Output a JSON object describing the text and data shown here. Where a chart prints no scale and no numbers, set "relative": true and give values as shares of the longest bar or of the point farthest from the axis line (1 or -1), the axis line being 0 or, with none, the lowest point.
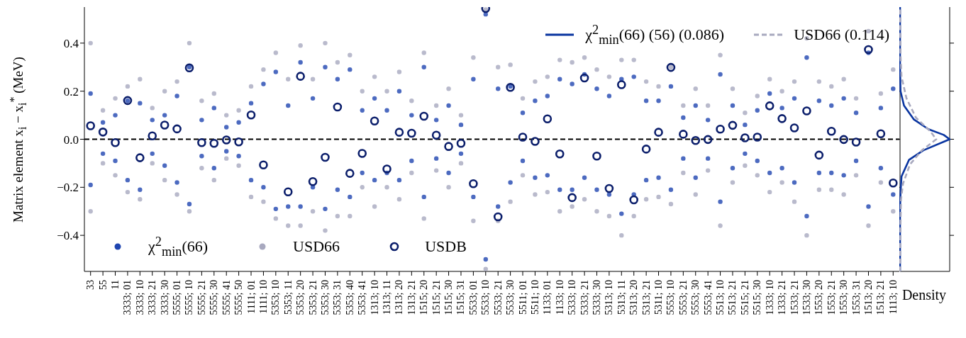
{
  "chart_data": [
    {
      "type": "scatter",
      "ylabel": "Matrix element x$_{i}$ − x$_{i}$$^{*}$ (MeV)",
      "marker": "circle",
      "legend": "bottom",
      "categories": [
        "33",
        "55",
        "11",
        "3333; 01",
        "3333; 10",
        "3333; 21",
        "3333; 30",
        "5555; 01",
        "5555; 10",
        "5555; 21",
        "5555; 30",
        "5555; 41",
        "5555; 50",
        "1111; 01",
        "1111; 10",
        "5353; 10",
        "5353; 11",
        "5353; 20",
        "5353; 21",
        "5353; 30",
        "5353; 31",
        "5353; 40",
        "5353; 41",
        "1313; 10",
        "1313; 11",
        "1313; 20",
        "1313; 21",
        "1515; 20",
        "1515; 21",
        "1515; 30",
        "1515; 31",
        "5533; 01",
        "5533; 10",
        "5533; 21",
        "5533; 30",
        "5511; 01",
        "5511; 10",
        "1133; 01",
        "1133; 10",
        "5333; 10",
        "5333; 21",
        "5333; 30",
        "5313; 10",
        "5313; 11",
        "5313; 20",
        "5313; 21",
        "5311; 10",
        "5553; 10",
        "5553; 21",
        "5553; 30",
        "5553; 41",
        "5513; 10",
        "5513; 21",
        "5515; 21",
        "5515; 30",
        "1333; 10",
        "1333; 21",
        "1533; 21",
        "1533; 30",
        "1553; 20",
        "1553; 21",
        "1553; 30",
        "1553; 31",
        "1513; 20",
        "1513; 21",
        "1113; 10"
      ],
      "ylim": [
        -0.55,
        0.55
      ],
      "yticks": [
        {
          "value": -0.4,
          "label": "−0.4"
        },
        {
          "value": -0.2,
          "label": "−0.2"
        },
        {
          "value": 0,
          "label": "0.0"
        },
        {
          "value": 0.2,
          "label": "0.2"
        },
        {
          "value": 0.4,
          "label": "0.4"
        }
      ],
      "ref_lines": [
        {
          "axis": "y",
          "value": 0,
          "color": "#000000",
          "line_style": "dashed"
        }
      ],
      "series": [
        {
          "name": "χ$^{2}$$_{min}$(66)",
          "color": "#1f45b0",
          "x": [
            "33",
            "33",
            "55",
            "55",
            "11",
            "11",
            "3333; 01",
            "3333; 01",
            "3333; 10",
            "3333; 10",
            "3333; 21",
            "3333; 21",
            "3333; 30",
            "3333; 30",
            "5555; 01",
            "5555; 01",
            "5555; 10",
            "5555; 10",
            "5555; 21",
            "5555; 21",
            "5555; 30",
            "5555; 30",
            "5555; 41",
            "5555; 41",
            "5555; 50",
            "5555; 50",
            "1111; 01",
            "1111; 01",
            "1111; 10",
            "1111; 10",
            "5353; 10",
            "5353; 10",
            "5353; 11",
            "5353; 11",
            "5353; 20",
            "5353; 20",
            "5353; 21",
            "5353; 21",
            "5353; 30",
            "5353; 30",
            "5353; 31",
            "5353; 31",
            "5353; 40",
            "5353; 40",
            "5353; 41",
            "5353; 41",
            "1313; 10",
            "1313; 10",
            "1313; 11",
            "1313; 11",
            "1313; 20",
            "1313; 20",
            "1313; 21",
            "1313; 21",
            "1515; 20",
            "1515; 20",
            "1515; 21",
            "1515; 21",
            "1515; 30",
            "1515; 30",
            "1515; 31",
            "1515; 31",
            "5533; 01",
            "5533; 01",
            "5533; 10",
            "5533; 10",
            "5533; 21",
            "5533; 21",
            "5533; 30",
            "5533; 30",
            "5511; 01",
            "5511; 01",
            "5511; 10",
            "5511; 10",
            "1133; 01",
            "1133; 01",
            "1133; 10",
            "1133; 10",
            "5333; 10",
            "5333; 10",
            "5333; 21",
            "5333; 21",
            "5333; 30",
            "5333; 30",
            "5313; 10",
            "5313; 10",
            "5313; 11",
            "5313; 11",
            "5313; 20",
            "5313; 20",
            "5313; 21",
            "5313; 21",
            "5311; 10",
            "5311; 10",
            "5553; 10",
            "5553; 10",
            "5553; 21",
            "5553; 21",
            "5553; 30",
            "5553; 30",
            "5553; 41",
            "5553; 41",
            "5513; 10",
            "5513; 10",
            "5513; 21",
            "5513; 21",
            "5515; 21",
            "5515; 21",
            "5515; 30",
            "5515; 30",
            "1333; 10",
            "1333; 10",
            "1333; 21",
            "1333; 21",
            "1533; 21",
            "1533; 21",
            "1533; 30",
            "1533; 30",
            "1553; 20",
            "1553; 20",
            "1553; 21",
            "1553; 21",
            "1553; 30",
            "1553; 30",
            "1553; 31",
            "1553; 31",
            "1513; 20",
            "1513; 20",
            "1513; 21",
            "1513; 21",
            "1113; 10",
            "1113; 10"
          ],
          "values": [
            0.19,
            -0.19,
            0.07,
            -0.06,
            0.1,
            -0.09,
            0.16,
            -0.17,
            0.15,
            -0.21,
            0.08,
            -0.06,
            0.1,
            -0.11,
            0.18,
            -0.18,
            0.3,
            -0.27,
            0.08,
            -0.07,
            0.13,
            -0.12,
            0.05,
            -0.05,
            0.07,
            -0.07,
            0.15,
            -0.17,
            0.23,
            -0.2,
            0.28,
            -0.29,
            0.14,
            -0.28,
            0.32,
            -0.28,
            0.17,
            -0.2,
            0.3,
            -0.29,
            0.25,
            -0.21,
            0.29,
            -0.24,
            0.12,
            -0.14,
            0.17,
            -0.17,
            0.12,
            -0.14,
            0.2,
            -0.17,
            0.1,
            -0.09,
            0.3,
            -0.24,
            0.08,
            -0.08,
            0.14,
            -0.14,
            0.06,
            -0.06,
            0.25,
            -0.24,
            0.52,
            -0.5,
            0.21,
            -0.28,
            0.22,
            -0.18,
            0.11,
            -0.09,
            0.16,
            -0.16,
            0.18,
            -0.15,
            0.25,
            -0.21,
            0.23,
            -0.21,
            0.27,
            -0.16,
            0.21,
            -0.21,
            0.18,
            -0.23,
            0.25,
            -0.31,
            0.26,
            -0.23,
            0.16,
            -0.17,
            0.16,
            -0.16,
            0.22,
            -0.21,
            0.09,
            -0.08,
            0.14,
            -0.16,
            0.08,
            -0.08,
            0.27,
            -0.26,
            0.14,
            -0.12,
            0.06,
            -0.06,
            0.12,
            -0.09,
            0.19,
            -0.14,
            0.13,
            -0.12,
            0.17,
            -0.18,
            0.34,
            -0.32,
            0.16,
            -0.14,
            0.14,
            -0.14,
            0.17,
            -0.15,
            0.11,
            -0.09,
            0.36,
            -0.28,
            0.13,
            -0.12,
            0.21,
            -0.23
          ]
        },
        {
          "name": "USD66",
          "color": "#a8a9bf",
          "x": [
            "33",
            "33",
            "55",
            "55",
            "11",
            "11",
            "3333; 01",
            "3333; 01",
            "3333; 10",
            "3333; 10",
            "3333; 21",
            "3333; 21",
            "3333; 30",
            "3333; 30",
            "5555; 01",
            "5555; 01",
            "5555; 10",
            "5555; 10",
            "5555; 21",
            "5555; 21",
            "5555; 30",
            "5555; 30",
            "5555; 41",
            "5555; 41",
            "5555; 50",
            "5555; 50",
            "1111; 01",
            "1111; 01",
            "1111; 10",
            "1111; 10",
            "5353; 10",
            "5353; 10",
            "5353; 11",
            "5353; 11",
            "5353; 20",
            "5353; 20",
            "5353; 21",
            "5353; 21",
            "5353; 30",
            "5353; 30",
            "5353; 31",
            "5353; 31",
            "5353; 40",
            "5353; 40",
            "5353; 41",
            "5353; 41",
            "1313; 10",
            "1313; 10",
            "1313; 11",
            "1313; 11",
            "1313; 20",
            "1313; 20",
            "1313; 21",
            "1313; 21",
            "1515; 20",
            "1515; 20",
            "1515; 21",
            "1515; 21",
            "1515; 30",
            "1515; 30",
            "1515; 31",
            "1515; 31",
            "5533; 01",
            "5533; 01",
            "5533; 10",
            "5533; 10",
            "5533; 21",
            "5533; 21",
            "5533; 30",
            "5533; 30",
            "5511; 01",
            "5511; 01",
            "5511; 10",
            "5511; 10",
            "1133; 01",
            "1133; 01",
            "1133; 10",
            "1133; 10",
            "5333; 10",
            "5333; 10",
            "5333; 21",
            "5333; 21",
            "5333; 30",
            "5333; 30",
            "5313; 10",
            "5313; 10",
            "5313; 11",
            "5313; 11",
            "5313; 20",
            "5313; 20",
            "5313; 21",
            "5313; 21",
            "5311; 10",
            "5311; 10",
            "5553; 10",
            "5553; 10",
            "5553; 21",
            "5553; 21",
            "5553; 30",
            "5553; 30",
            "5553; 41",
            "5553; 41",
            "5513; 10",
            "5513; 10",
            "5513; 21",
            "5513; 21",
            "5515; 21",
            "5515; 21",
            "5515; 30",
            "5515; 30",
            "1333; 10",
            "1333; 10",
            "1333; 21",
            "1333; 21",
            "1533; 21",
            "1533; 21",
            "1533; 30",
            "1533; 30",
            "1553; 20",
            "1553; 20",
            "1553; 21",
            "1553; 21",
            "1553; 30",
            "1553; 30",
            "1553; 31",
            "1553; 31",
            "1513; 20",
            "1513; 20",
            "1513; 21",
            "1513; 21",
            "1113; 10",
            "1113; 10"
          ],
          "values": [
            0.4,
            -0.3,
            0.12,
            -0.1,
            0.17,
            -0.15,
            0.22,
            -0.22,
            0.25,
            -0.25,
            0.13,
            -0.1,
            0.2,
            -0.17,
            0.24,
            -0.23,
            0.4,
            -0.3,
            0.16,
            -0.12,
            0.19,
            -0.17,
            0.1,
            -0.08,
            0.12,
            -0.11,
            0.22,
            -0.24,
            0.29,
            -0.26,
            0.36,
            -0.33,
            0.25,
            -0.36,
            0.39,
            -0.36,
            0.25,
            -0.3,
            0.4,
            -0.38,
            0.32,
            -0.32,
            0.35,
            -0.32,
            0.2,
            -0.2,
            0.26,
            -0.28,
            0.2,
            -0.2,
            0.28,
            -0.25,
            0.16,
            -0.14,
            0.36,
            -0.33,
            0.14,
            -0.13,
            0.21,
            -0.2,
            0.1,
            -0.1,
            0.34,
            -0.34,
            0.54,
            -0.54,
            0.3,
            -0.34,
            0.31,
            -0.26,
            0.17,
            -0.15,
            0.24,
            -0.23,
            0.26,
            -0.22,
            0.33,
            -0.3,
            0.32,
            -0.28,
            0.34,
            -0.25,
            0.29,
            -0.3,
            0.26,
            -0.32,
            0.33,
            -0.4,
            0.33,
            -0.32,
            0.24,
            -0.25,
            0.22,
            -0.24,
            0.3,
            -0.27,
            0.14,
            -0.14,
            0.21,
            -0.23,
            0.14,
            -0.13,
            0.35,
            -0.36,
            0.21,
            -0.18,
            0.11,
            -0.11,
            0.18,
            -0.15,
            0.25,
            -0.22,
            0.2,
            -0.18,
            0.24,
            -0.26,
            0.42,
            -0.4,
            0.24,
            -0.21,
            0.22,
            -0.21,
            0.25,
            -0.23,
            0.17,
            -0.15,
            0.45,
            -0.36,
            0.19,
            -0.18,
            0.29,
            -0.3
          ]
        },
        {
          "name": "USDB",
          "color": "#0b1e6b",
          "values": [
            0.056,
            0.03,
            -0.014,
            0.161,
            -0.077,
            0.014,
            0.059,
            0.043,
            0.297,
            -0.014,
            -0.017,
            -0.003,
            -0.011,
            0.101,
            -0.107,
            null,
            -0.219,
            0.262,
            -0.176,
            -0.075,
            0.134,
            -0.142,
            -0.059,
            0.076,
            -0.124,
            0.029,
            0.025,
            0.096,
            0.017,
            -0.03,
            -0.017,
            -0.185,
            0.544,
            -0.323,
            0.216,
            0.009,
            -0.009,
            0.085,
            -0.061,
            -0.243,
            0.255,
            -0.07,
            -0.205,
            0.227,
            -0.252,
            -0.041,
            0.029,
            0.299,
            0.021,
            -0.005,
            -0.001,
            0.042,
            0.058,
            0.006,
            0.009,
            0.139,
            0.086,
            0.047,
            0.118,
            -0.066,
            0.033,
            -0.001,
            -0.012,
            0.373,
            0.023,
            -0.182
          ]
        }
      ]
    },
    {
      "type": "line",
      "orientation": "horizontal",
      "relative": true,
      "xlabel": "Density",
      "legend": "top left",
      "tick_labels": false,
      "ylim": [
        -0.55,
        0.55
      ],
      "yticks": [
        -0.4,
        -0.2,
        0,
        0.2,
        0.4
      ],
      "series": [
        {
          "name": "χ$^{2}$$_{min}$(66) (56) (0.086)",
          "color": "#0a35a0",
          "line_style": "solid",
          "x": [
            -0.55,
            -0.3,
            -0.22,
            -0.155,
            -0.086,
            -0.046,
            0,
            0.018,
            0.042,
            0.082,
            0.14,
            0.2,
            0.3,
            0.55
          ],
          "values": [
            0,
            0,
            0.01,
            0.03,
            0.18,
            0.47,
            1,
            0.88,
            0.57,
            0.28,
            0.08,
            0.01,
            0,
            0
          ]
        },
        {
          "name": "USD66 (0.114)",
          "color": "#a8a9bf",
          "line_style": "dashed",
          "x": [
            -0.55,
            -0.35,
            -0.25,
            -0.185,
            -0.105,
            -0.046,
            0,
            0.033,
            0.09,
            0.17,
            0.26,
            0.35,
            0.55
          ],
          "values": [
            0,
            0.01,
            0.02,
            0.06,
            0.2,
            0.44,
            0.73,
            0.61,
            0.32,
            0.13,
            0.03,
            0.01,
            0
          ]
        }
      ]
    }
  ]
}
